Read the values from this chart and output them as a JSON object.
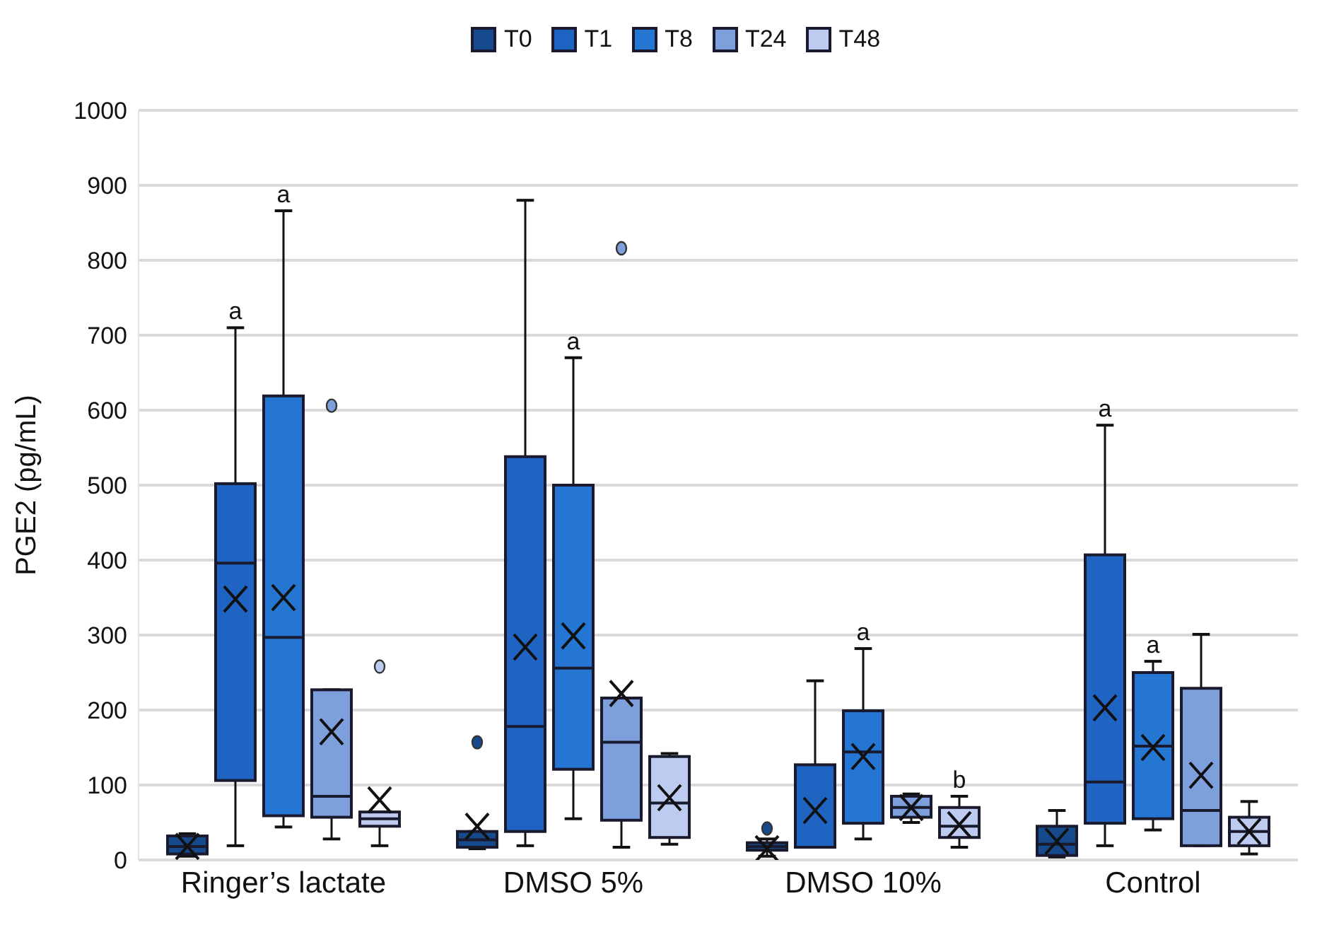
{
  "chart_data": {
    "type": "box",
    "ylabel": "PGE2 (pg/mL)",
    "categories": [
      "Ringer’s lactate",
      "DMSO 5%",
      "DMSO 10%",
      "Control"
    ],
    "series": [
      {
        "name": "T0",
        "color": "#174a8c",
        "boxes": [
          {
            "low": 5,
            "q1": 8,
            "median": 18,
            "q3": 32,
            "high": 35,
            "mean": 18
          },
          {
            "low": 15,
            "q1": 17,
            "median": 27,
            "q3": 38,
            "high": 38,
            "mean": 45,
            "outliers": [
              157
            ]
          },
          {
            "low": 5,
            "q1": 13,
            "median": 18,
            "q3": 23,
            "high": 28,
            "mean": 15,
            "outliers": [
              42
            ]
          },
          {
            "low": 4,
            "q1": 6,
            "median": 21,
            "q3": 45,
            "high": 66,
            "mean": 25
          }
        ]
      },
      {
        "name": "T1",
        "color": "#1f64c2",
        "boxes": [
          {
            "low": 19,
            "q1": 106,
            "median": 396,
            "q3": 502,
            "high": 710,
            "mean": 348
          },
          {
            "low": 19,
            "q1": 38,
            "median": 178,
            "q3": 538,
            "high": 880,
            "mean": 284
          },
          {
            "low": 17,
            "q1": 17,
            "median": 17,
            "q3": 127,
            "high": 239,
            "mean": 66
          },
          {
            "low": 19,
            "q1": 49,
            "median": 104,
            "q3": 407,
            "high": 580,
            "mean": 203
          }
        ]
      },
      {
        "name": "T8",
        "color": "#2575d3",
        "boxes": [
          {
            "low": 44,
            "q1": 59,
            "median": 297,
            "q3": 619,
            "high": 866,
            "mean": 350
          },
          {
            "low": 55,
            "q1": 121,
            "median": 256,
            "q3": 500,
            "high": 670,
            "mean": 299
          },
          {
            "low": 28,
            "q1": 49,
            "median": 144,
            "q3": 199,
            "high": 282,
            "mean": 138
          },
          {
            "low": 40,
            "q1": 55,
            "median": 152,
            "q3": 250,
            "high": 265,
            "mean": 150
          }
        ]
      },
      {
        "name": "T24",
        "color": "#7d9fdc",
        "boxes": [
          {
            "low": 28,
            "q1": 57,
            "median": 85,
            "q3": 227,
            "high": 227,
            "mean": 171,
            "outliers": [
              606
            ]
          },
          {
            "low": 17,
            "q1": 53,
            "median": 157,
            "q3": 216,
            "high": 216,
            "mean": 222,
            "outliers": [
              816
            ]
          },
          {
            "low": 50,
            "q1": 57,
            "median": 70,
            "q3": 85,
            "high": 88,
            "mean": 70
          },
          {
            "low": 19,
            "q1": 19,
            "median": 66,
            "q3": 229,
            "high": 301,
            "mean": 113
          }
        ]
      },
      {
        "name": "T48",
        "color": "#bccbef",
        "boxes": [
          {
            "low": 19,
            "q1": 45,
            "median": 55,
            "q3": 64,
            "high": 64,
            "mean": 80,
            "outliers": [
              258
            ]
          },
          {
            "low": 21,
            "q1": 30,
            "median": 76,
            "q3": 138,
            "high": 142,
            "mean": 83
          },
          {
            "low": 17,
            "q1": 30,
            "median": 45,
            "q3": 70,
            "high": 85,
            "mean": 47
          },
          {
            "low": 8,
            "q1": 19,
            "median": 38,
            "q3": 57,
            "high": 78,
            "mean": 38
          }
        ]
      }
    ],
    "ylim": [
      0,
      1000
    ],
    "yticks": [
      0,
      100,
      200,
      300,
      400,
      500,
      600,
      700,
      800,
      900,
      1000
    ],
    "grid": "y",
    "legend": "top",
    "annotations": [
      {
        "text": "a",
        "x": "Ringer’s lactate",
        "y": 710
      },
      {
        "text": "a",
        "x": "Ringer’s lactate",
        "y": 866
      },
      {
        "text": "a",
        "x": "DMSO 5%",
        "y": 670
      },
      {
        "text": "a",
        "x": "DMSO 10%",
        "y": 282
      },
      "b",
      "a",
      {
        "text": "a",
        "x": "Control",
        "y": 265
      }
    ]
  }
}
